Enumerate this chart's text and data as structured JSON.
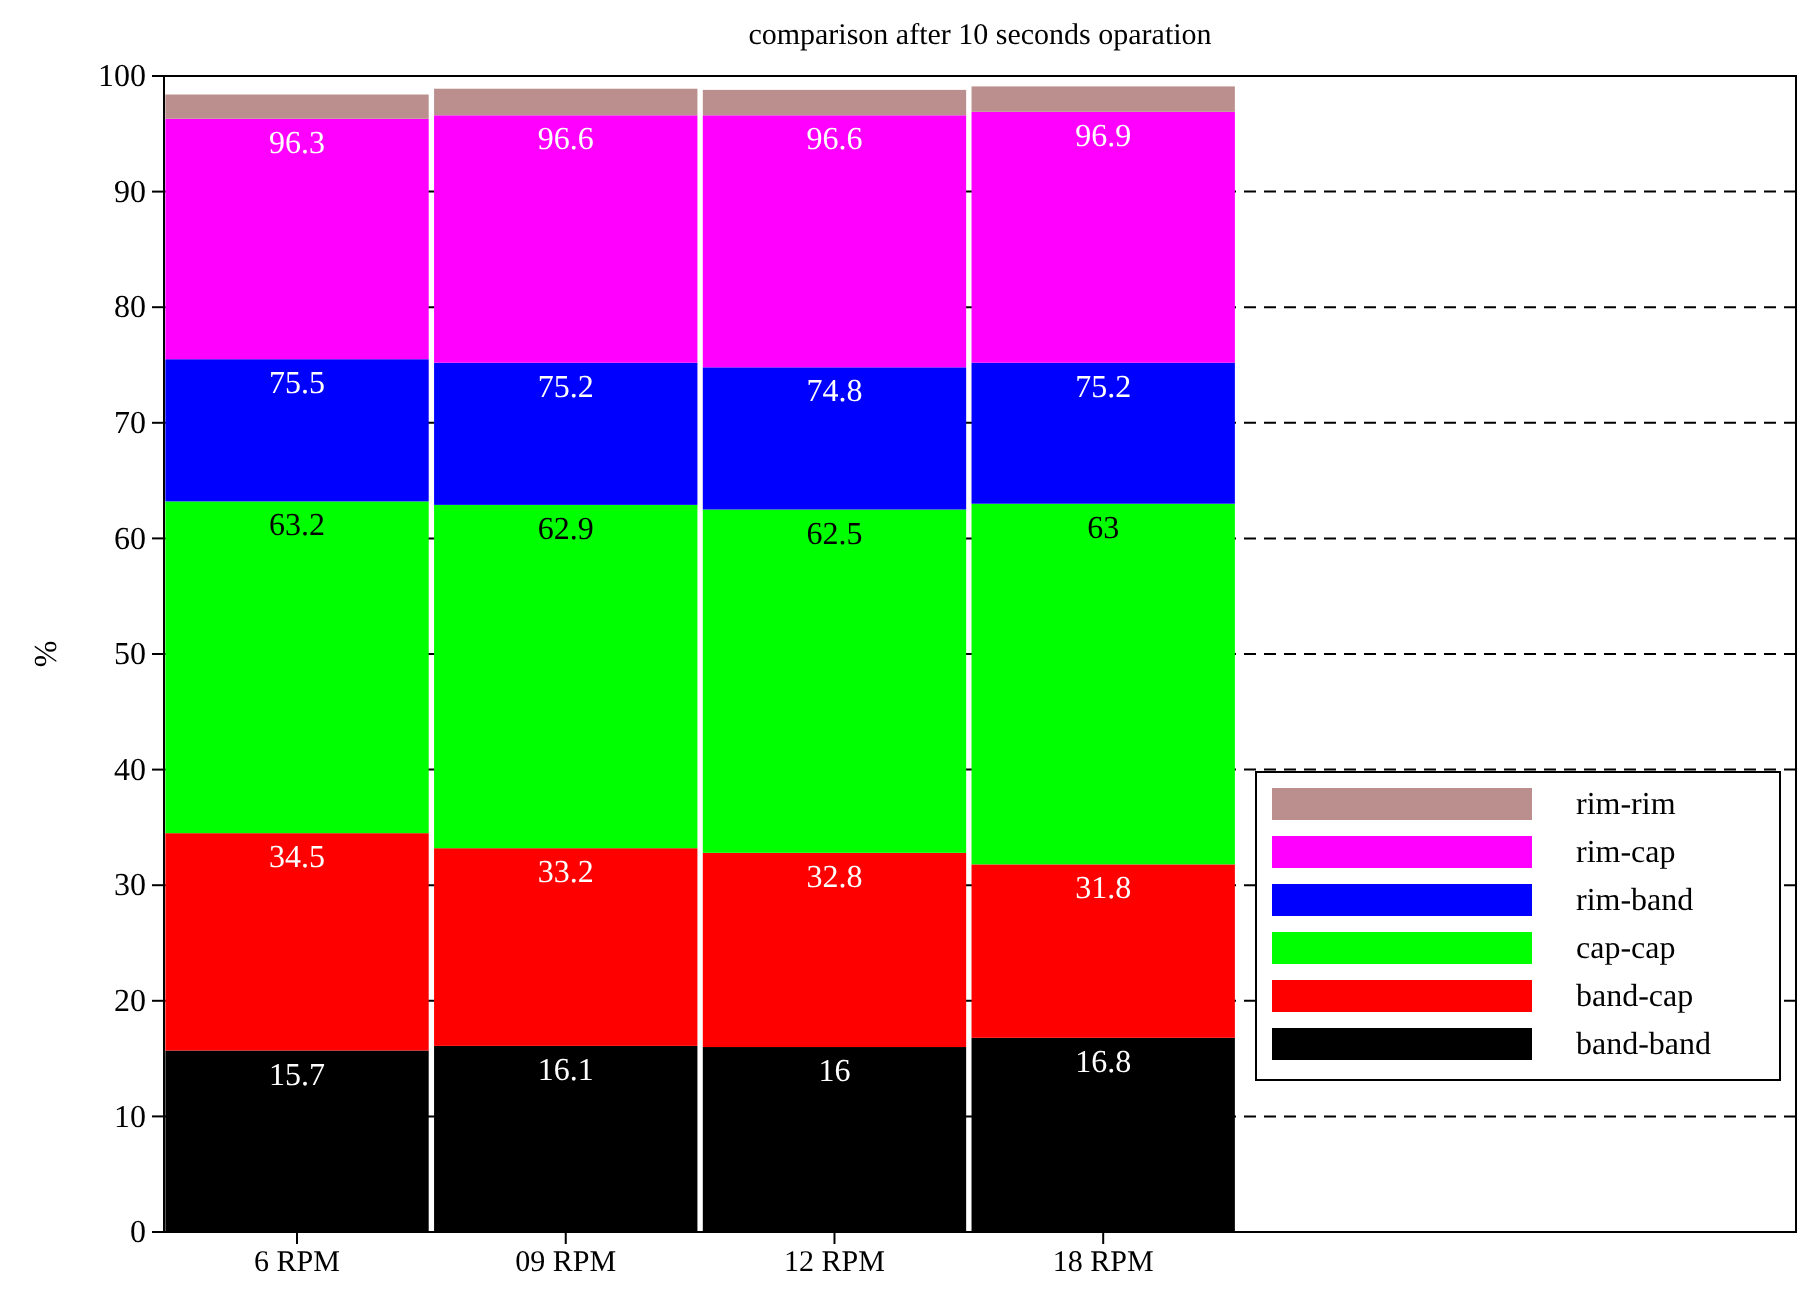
{
  "chart_data": {
    "type": "bar",
    "title": "comparison after 10 seconds oparation",
    "ylabel": "%",
    "categories": [
      "6 RPM",
      "09 RPM",
      "12 RPM",
      "18 RPM"
    ],
    "stacked": true,
    "series": [
      {
        "name": "band-band",
        "color": "#000000",
        "values": [
          15.7,
          16.1,
          16,
          16.8
        ]
      },
      {
        "name": "band-cap",
        "color": "#ff0000",
        "values": [
          18.8,
          17.1,
          16.8,
          15.0
        ]
      },
      {
        "name": "cap-cap",
        "color": "#00ff00",
        "values": [
          28.7,
          29.7,
          29.7,
          31.2
        ]
      },
      {
        "name": "rim-band",
        "color": "#0000ff",
        "values": [
          12.3,
          12.3,
          12.3,
          12.2
        ]
      },
      {
        "name": "rim-cap",
        "color": "#ff00ff",
        "values": [
          20.8,
          21.4,
          21.8,
          21.7
        ]
      },
      {
        "name": "rim-rim",
        "color": "#bc8f8f",
        "values": [
          2.1,
          2.3,
          2.2,
          2.2
        ]
      }
    ],
    "annotations": [
      {
        "text": "15.7",
        "x": "6 RPM",
        "y": 15.7
      },
      {
        "text": "16.1",
        "x": "09 RPM",
        "y": 16.1
      },
      {
        "text": "16",
        "x": "12 RPM",
        "y": 16
      },
      {
        "text": "16.8",
        "x": "18 RPM",
        "y": 16.8
      },
      {
        "text": "34.5",
        "x": "6 RPM",
        "y": 34.5
      },
      {
        "text": "33.2",
        "x": "09 RPM",
        "y": 33.2
      },
      {
        "text": "32.8",
        "x": "12 RPM",
        "y": 32.8
      },
      {
        "text": "31.8",
        "x": "18 RPM",
        "y": 31.8
      },
      {
        "text": "63.2",
        "x": "6 RPM",
        "y": 63.2
      },
      {
        "text": "62.9",
        "x": "09 RPM",
        "y": 62.9
      },
      {
        "text": "62.5",
        "x": "12 RPM",
        "y": 62.5
      },
      {
        "text": "63",
        "x": "18 RPM",
        "y": 63
      },
      {
        "text": "75.5",
        "x": "6 RPM",
        "y": 75.5
      },
      {
        "text": "75.2",
        "x": "09 RPM",
        "y": 75.2
      },
      {
        "text": "74.8",
        "x": "12 RPM",
        "y": 74.8
      },
      {
        "text": "75.2",
        "x": "18 RPM",
        "y": 75.2
      },
      {
        "text": "96.3",
        "x": "6 RPM",
        "y": 96.3
      },
      {
        "text": "96.6",
        "x": "09 RPM",
        "y": 96.6
      },
      {
        "text": "96.6",
        "x": "12 RPM",
        "y": 96.6
      },
      {
        "text": "96.9",
        "x": "18 RPM",
        "y": 96.9
      }
    ],
    "ylim": [
      0,
      100
    ],
    "yticks": [
      0,
      10,
      20,
      30,
      40,
      50,
      60,
      70,
      80,
      90,
      100
    ],
    "grid": "y",
    "legend": "bottom right"
  }
}
